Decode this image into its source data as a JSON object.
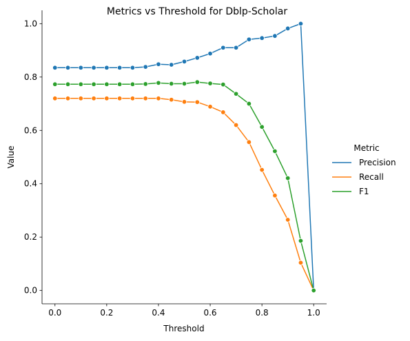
{
  "chart_data": {
    "type": "line",
    "title": "Metrics vs Threshold for Dblp-Scholar",
    "xlabel": "Threshold",
    "ylabel": "Value",
    "xlim": [
      -0.05,
      1.05
    ],
    "ylim": [
      -0.05,
      1.05
    ],
    "x_ticks": [
      0.0,
      0.2,
      0.4,
      0.6,
      0.8,
      1.0
    ],
    "x_tick_labels": [
      "0.0",
      "0.2",
      "0.4",
      "0.6",
      "0.8",
      "1.0"
    ],
    "y_ticks": [
      0.0,
      0.2,
      0.4,
      0.6,
      0.8,
      1.0
    ],
    "y_tick_labels": [
      "0.0",
      "0.2",
      "0.4",
      "0.6",
      "0.8",
      "1.0"
    ],
    "grid": false,
    "markers": true,
    "legend": {
      "title": "Metric",
      "placement": "right-outside"
    },
    "x": [
      0.0,
      0.05,
      0.1,
      0.15,
      0.2,
      0.25,
      0.3,
      0.35,
      0.4,
      0.45,
      0.5,
      0.55,
      0.6,
      0.65,
      0.7,
      0.75,
      0.8,
      0.85,
      0.9,
      0.95,
      1.0
    ],
    "series": [
      {
        "name": "Precision",
        "color": "#1f77b4",
        "values": [
          0.835,
          0.835,
          0.835,
          0.835,
          0.835,
          0.835,
          0.835,
          0.838,
          0.848,
          0.846,
          0.858,
          0.872,
          0.888,
          0.91,
          0.91,
          0.941,
          0.946,
          0.954,
          0.982,
          1.0,
          0.0
        ]
      },
      {
        "name": "Recall",
        "color": "#ff7f0e",
        "values": [
          0.72,
          0.72,
          0.72,
          0.72,
          0.72,
          0.72,
          0.72,
          0.72,
          0.72,
          0.715,
          0.707,
          0.706,
          0.689,
          0.668,
          0.62,
          0.556,
          0.452,
          0.356,
          0.265,
          0.104,
          0.0
        ]
      },
      {
        "name": "F1",
        "color": "#2ca02c",
        "values": [
          0.773,
          0.773,
          0.773,
          0.773,
          0.773,
          0.773,
          0.773,
          0.774,
          0.778,
          0.775,
          0.775,
          0.781,
          0.776,
          0.772,
          0.737,
          0.7,
          0.613,
          0.522,
          0.421,
          0.186,
          0.0
        ]
      }
    ]
  }
}
